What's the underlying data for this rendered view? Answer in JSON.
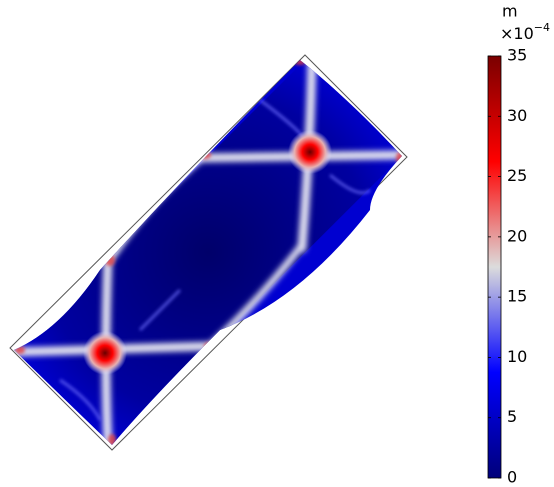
{
  "chart_data": {
    "type": "surface",
    "unit": "m",
    "scale_base": "×10",
    "scale_exponent": "−4",
    "clim": [
      0,
      35
    ],
    "cticks": [
      0,
      5,
      10,
      15,
      20,
      25,
      30,
      35
    ],
    "colormap": [
      "#00007a",
      "#0000ff",
      "#dcdcdc",
      "#ff0000",
      "#7a0000"
    ]
  }
}
